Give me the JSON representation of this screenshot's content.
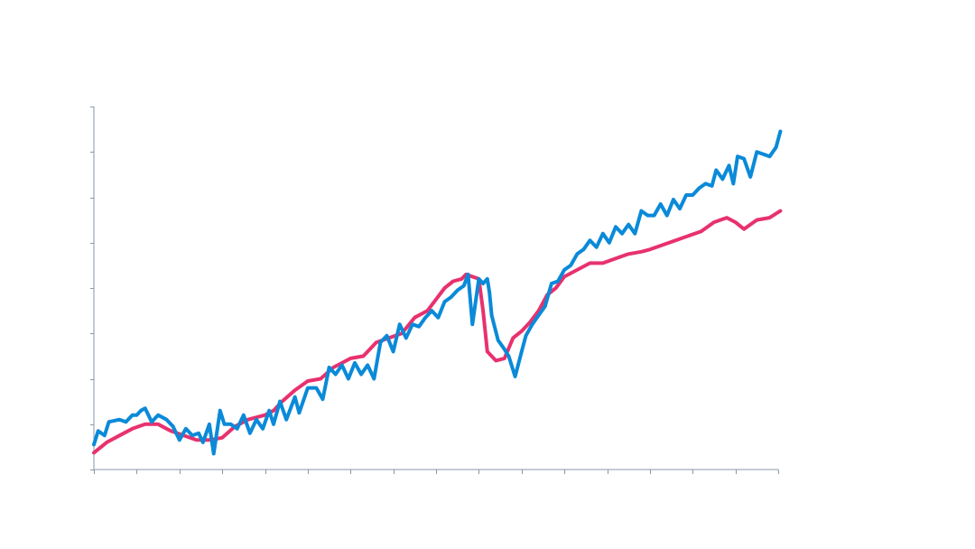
{
  "chart_data": {
    "type": "line",
    "title": "",
    "xlabel": "",
    "ylabel": "",
    "x_range": [
      0,
      16
    ],
    "y_range": [
      0,
      8
    ],
    "x_ticks": [
      0,
      1,
      2,
      3,
      4,
      5,
      6,
      7,
      8,
      9,
      10,
      11,
      12,
      13,
      14,
      15,
      16
    ],
    "y_ticks": [
      0,
      1,
      2,
      3,
      4,
      5,
      6,
      7,
      8
    ],
    "grid": false,
    "legend": "none",
    "series": [
      {
        "color": "#e8316e",
        "points": [
          [
            0.0,
            0.37
          ],
          [
            0.3,
            0.6
          ],
          [
            0.6,
            0.75
          ],
          [
            0.9,
            0.9
          ],
          [
            1.2,
            1.0
          ],
          [
            1.5,
            1.0
          ],
          [
            1.8,
            0.85
          ],
          [
            2.1,
            0.75
          ],
          [
            2.4,
            0.65
          ],
          [
            2.7,
            0.65
          ],
          [
            3.0,
            0.7
          ],
          [
            3.3,
            0.95
          ],
          [
            3.6,
            1.1
          ],
          [
            4.0,
            1.2
          ],
          [
            4.2,
            1.3
          ],
          [
            4.4,
            1.5
          ],
          [
            4.7,
            1.75
          ],
          [
            5.0,
            1.95
          ],
          [
            5.3,
            2.0
          ],
          [
            5.6,
            2.25
          ],
          [
            6.0,
            2.45
          ],
          [
            6.3,
            2.5
          ],
          [
            6.6,
            2.8
          ],
          [
            6.9,
            2.9
          ],
          [
            7.2,
            3.0
          ],
          [
            7.5,
            3.35
          ],
          [
            7.8,
            3.5
          ],
          [
            8.0,
            3.75
          ],
          [
            8.2,
            4.0
          ],
          [
            8.4,
            4.15
          ],
          [
            8.6,
            4.2
          ],
          [
            8.7,
            4.3
          ],
          [
            9.0,
            4.2
          ],
          [
            9.1,
            3.5
          ],
          [
            9.2,
            2.6
          ],
          [
            9.4,
            2.4
          ],
          [
            9.6,
            2.45
          ],
          [
            9.8,
            2.9
          ],
          [
            10.0,
            3.05
          ],
          [
            10.2,
            3.25
          ],
          [
            10.4,
            3.5
          ],
          [
            10.6,
            3.85
          ],
          [
            10.8,
            4.0
          ],
          [
            11.0,
            4.25
          ],
          [
            11.3,
            4.4
          ],
          [
            11.6,
            4.55
          ],
          [
            11.9,
            4.55
          ],
          [
            12.2,
            4.65
          ],
          [
            12.5,
            4.75
          ],
          [
            12.8,
            4.8
          ],
          [
            13.0,
            4.85
          ],
          [
            13.3,
            4.95
          ],
          [
            13.6,
            5.05
          ],
          [
            13.9,
            5.15
          ],
          [
            14.2,
            5.25
          ],
          [
            14.5,
            5.45
          ],
          [
            14.8,
            5.55
          ],
          [
            15.0,
            5.45
          ],
          [
            15.2,
            5.3
          ],
          [
            15.5,
            5.5
          ],
          [
            15.8,
            5.55
          ],
          [
            16.05,
            5.7
          ]
        ]
      },
      {
        "color": "#0a8ad8",
        "points": [
          [
            0.0,
            0.55
          ],
          [
            0.1,
            0.85
          ],
          [
            0.25,
            0.75
          ],
          [
            0.35,
            1.05
          ],
          [
            0.6,
            1.1
          ],
          [
            0.75,
            1.05
          ],
          [
            0.9,
            1.2
          ],
          [
            1.0,
            1.2
          ],
          [
            1.1,
            1.3
          ],
          [
            1.2,
            1.35
          ],
          [
            1.35,
            1.05
          ],
          [
            1.5,
            1.2
          ],
          [
            1.7,
            1.1
          ],
          [
            1.85,
            0.95
          ],
          [
            2.0,
            0.65
          ],
          [
            2.15,
            0.9
          ],
          [
            2.3,
            0.75
          ],
          [
            2.45,
            0.8
          ],
          [
            2.55,
            0.6
          ],
          [
            2.7,
            1.0
          ],
          [
            2.8,
            0.35
          ],
          [
            2.95,
            1.3
          ],
          [
            3.05,
            1.0
          ],
          [
            3.2,
            1.0
          ],
          [
            3.35,
            0.9
          ],
          [
            3.5,
            1.2
          ],
          [
            3.65,
            0.8
          ],
          [
            3.8,
            1.1
          ],
          [
            3.95,
            0.9
          ],
          [
            4.1,
            1.3
          ],
          [
            4.2,
            1.0
          ],
          [
            4.35,
            1.5
          ],
          [
            4.5,
            1.1
          ],
          [
            4.7,
            1.6
          ],
          [
            4.8,
            1.25
          ],
          [
            5.0,
            1.8
          ],
          [
            5.2,
            1.8
          ],
          [
            5.35,
            1.55
          ],
          [
            5.5,
            2.25
          ],
          [
            5.65,
            2.1
          ],
          [
            5.8,
            2.3
          ],
          [
            5.95,
            2.0
          ],
          [
            6.1,
            2.35
          ],
          [
            6.25,
            2.1
          ],
          [
            6.4,
            2.3
          ],
          [
            6.55,
            2.0
          ],
          [
            6.7,
            2.8
          ],
          [
            6.85,
            2.95
          ],
          [
            7.0,
            2.6
          ],
          [
            7.15,
            3.2
          ],
          [
            7.3,
            2.9
          ],
          [
            7.45,
            3.2
          ],
          [
            7.6,
            3.15
          ],
          [
            7.75,
            3.35
          ],
          [
            7.9,
            3.5
          ],
          [
            8.05,
            3.35
          ],
          [
            8.2,
            3.7
          ],
          [
            8.35,
            3.8
          ],
          [
            8.5,
            3.95
          ],
          [
            8.65,
            4.05
          ],
          [
            8.75,
            4.3
          ],
          [
            8.85,
            3.2
          ],
          [
            9.0,
            4.2
          ],
          [
            9.1,
            4.1
          ],
          [
            9.2,
            4.2
          ],
          [
            9.25,
            3.9
          ],
          [
            9.3,
            3.4
          ],
          [
            9.45,
            2.85
          ],
          [
            9.6,
            2.65
          ],
          [
            9.7,
            2.5
          ],
          [
            9.85,
            2.05
          ],
          [
            10.0,
            2.6
          ],
          [
            10.1,
            2.95
          ],
          [
            10.25,
            3.2
          ],
          [
            10.4,
            3.4
          ],
          [
            10.55,
            3.6
          ],
          [
            10.7,
            4.1
          ],
          [
            10.85,
            4.15
          ],
          [
            11.0,
            4.4
          ],
          [
            11.15,
            4.5
          ],
          [
            11.3,
            4.75
          ],
          [
            11.45,
            4.85
          ],
          [
            11.6,
            5.05
          ],
          [
            11.75,
            4.9
          ],
          [
            11.9,
            5.2
          ],
          [
            12.05,
            5.0
          ],
          [
            12.2,
            5.35
          ],
          [
            12.35,
            5.2
          ],
          [
            12.5,
            5.4
          ],
          [
            12.65,
            5.2
          ],
          [
            12.8,
            5.7
          ],
          [
            12.95,
            5.6
          ],
          [
            13.1,
            5.6
          ],
          [
            13.25,
            5.85
          ],
          [
            13.4,
            5.6
          ],
          [
            13.55,
            5.95
          ],
          [
            13.7,
            5.75
          ],
          [
            13.85,
            6.05
          ],
          [
            14.0,
            6.05
          ],
          [
            14.15,
            6.2
          ],
          [
            14.3,
            6.3
          ],
          [
            14.45,
            6.25
          ],
          [
            14.55,
            6.6
          ],
          [
            14.7,
            6.4
          ],
          [
            14.85,
            6.7
          ],
          [
            14.95,
            6.3
          ],
          [
            15.05,
            6.9
          ],
          [
            15.2,
            6.85
          ],
          [
            15.35,
            6.45
          ],
          [
            15.5,
            7.0
          ],
          [
            15.65,
            6.95
          ],
          [
            15.8,
            6.9
          ],
          [
            15.95,
            7.1
          ],
          [
            16.05,
            7.45
          ]
        ]
      }
    ]
  }
}
